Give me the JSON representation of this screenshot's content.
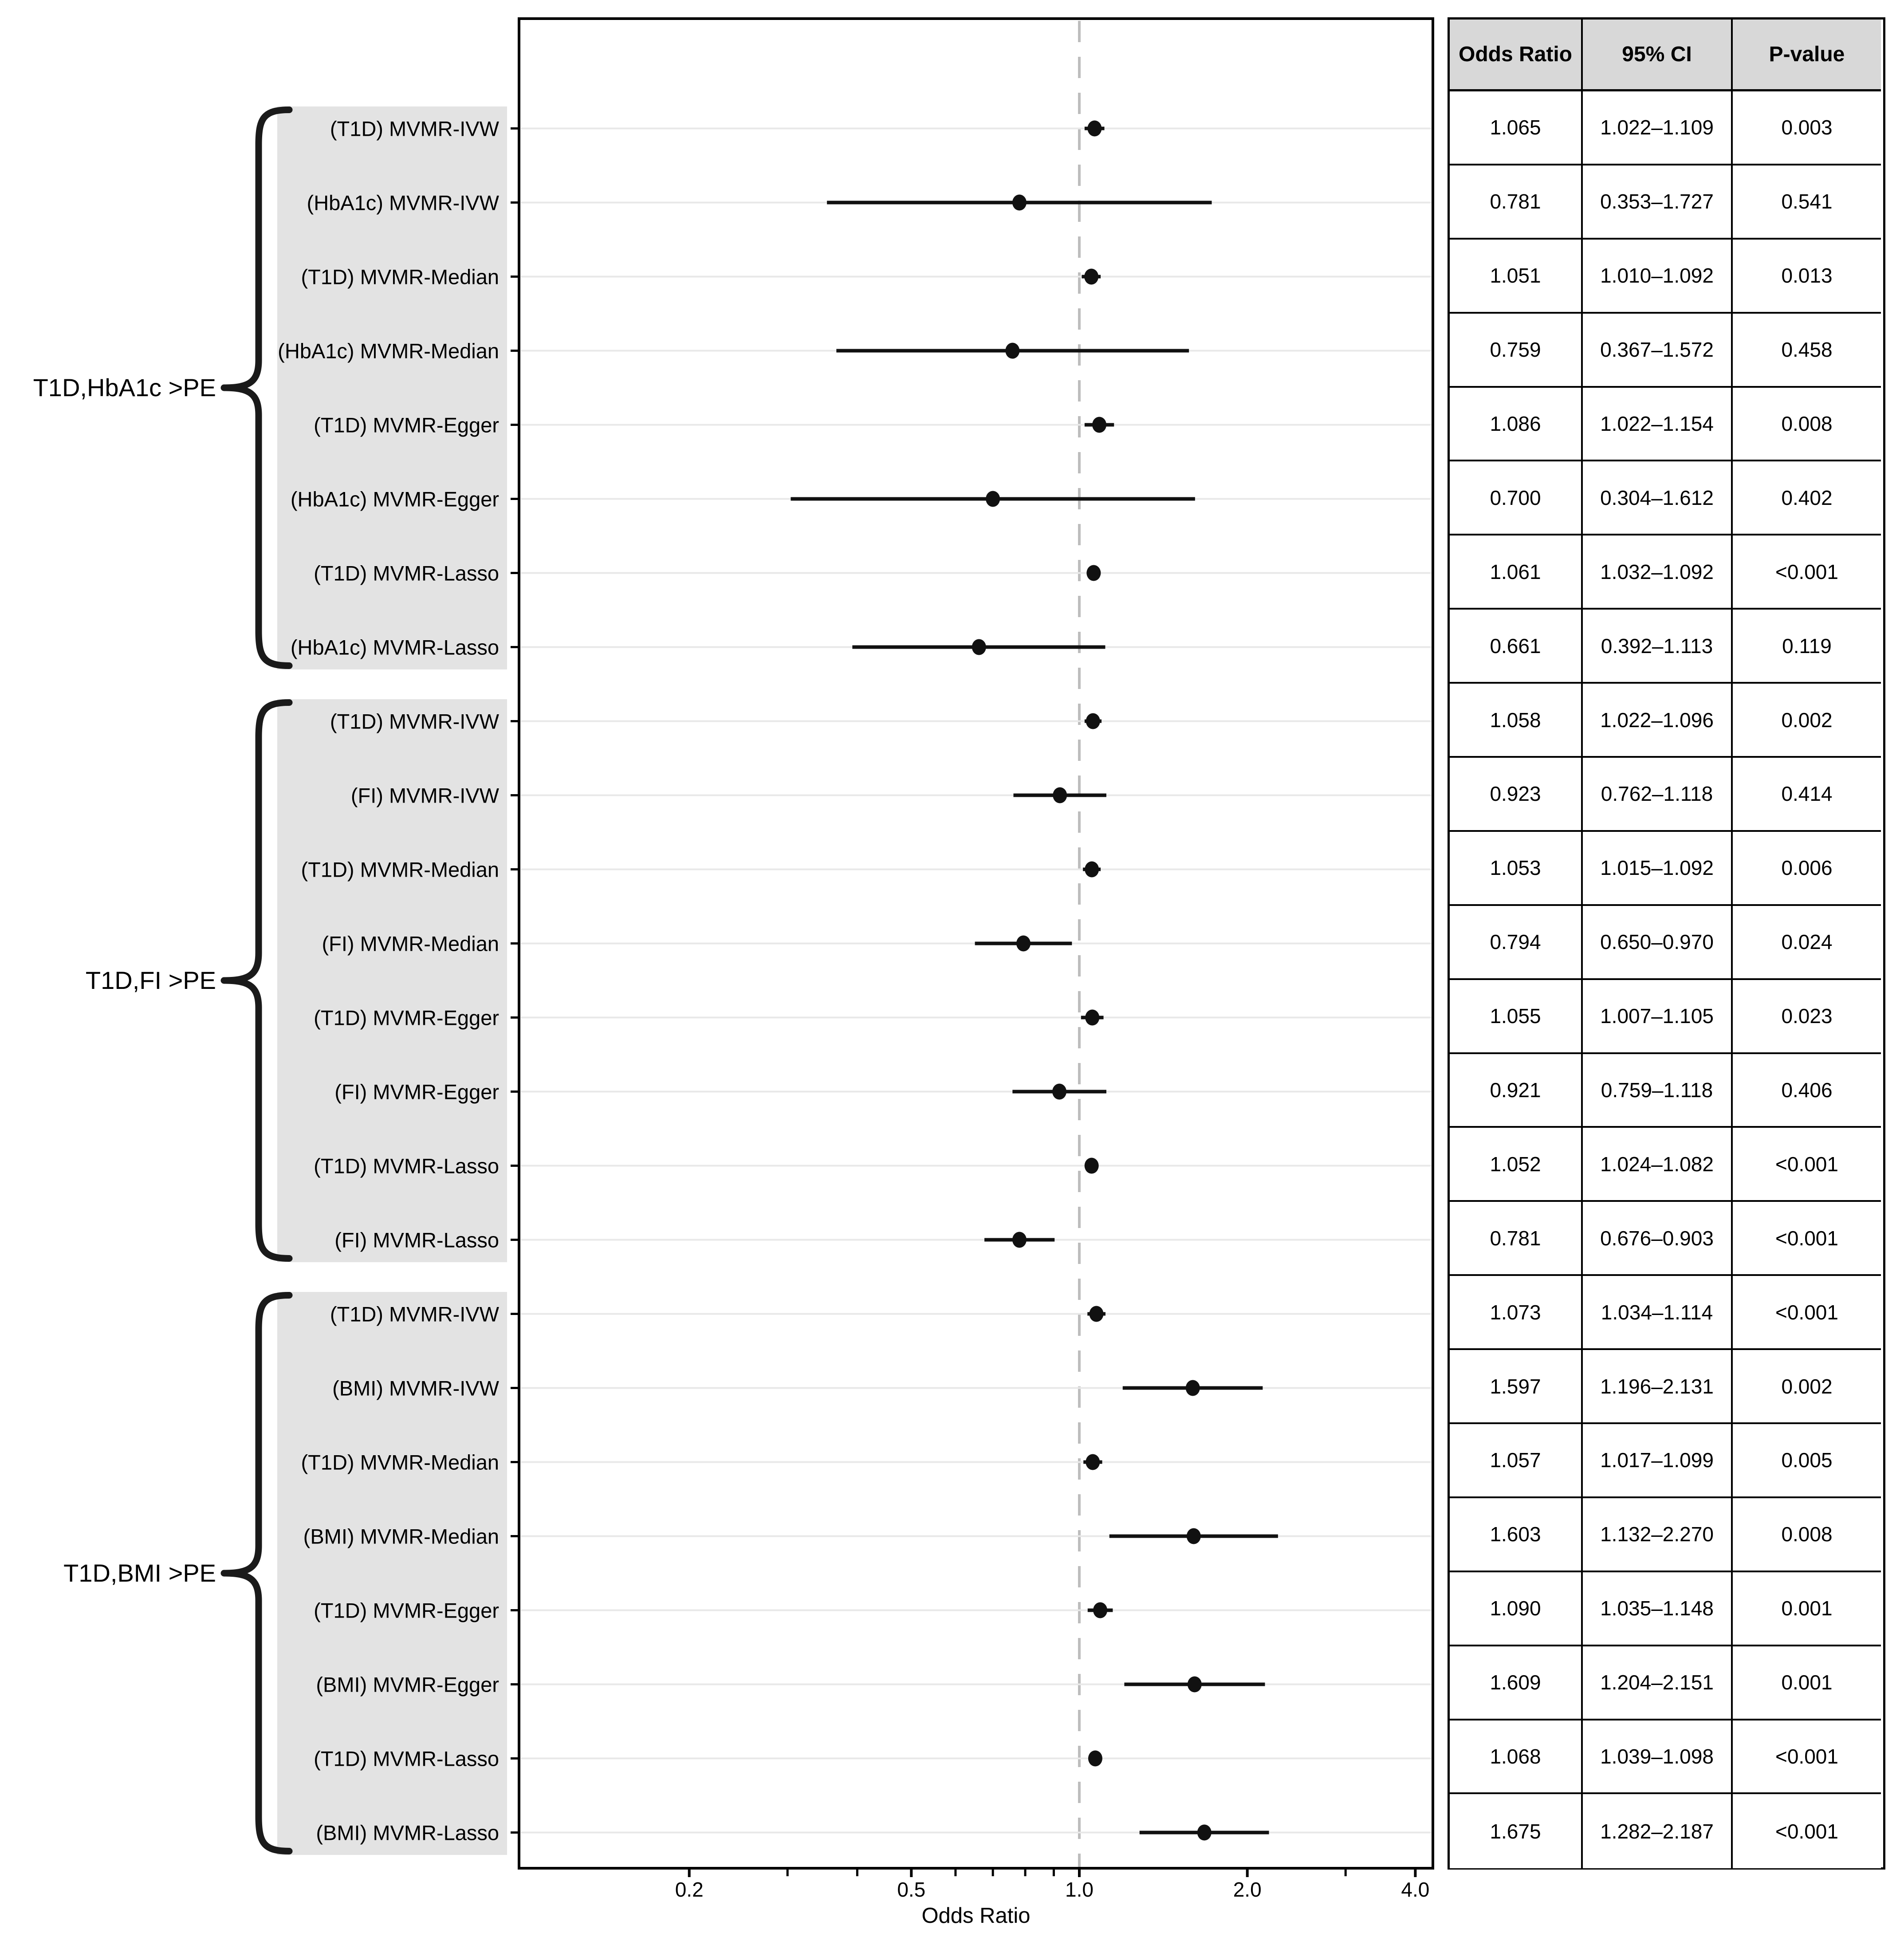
{
  "chart_data": {
    "type": "scatter",
    "variant": "forest-plot",
    "title": "",
    "xlabel": "Odds Ratio",
    "x_scale": "log10",
    "x_range": [
      0.098,
      4.3
    ],
    "x_major_tick_labels": [
      "0.2",
      "0.5",
      "1.0",
      "2.0",
      "4.0"
    ],
    "x_major_ticks": [
      0.2,
      0.5,
      1.0,
      2.0,
      4.0
    ],
    "x_minor_ticks": [
      0.3,
      0.4,
      0.6,
      0.7,
      0.8,
      0.9,
      3.0
    ],
    "reference_line": 1.0,
    "grid": "horizontal-per-row",
    "legend": "none",
    "table_columns": [
      "Odds Ratio",
      "95% CI",
      "P-value"
    ],
    "groups": [
      {
        "label": "T1D,HbA1c >PE",
        "rows": [
          {
            "label": "(T1D) MVMR-IVW",
            "or": 1.065,
            "or_text": "1.065",
            "ci_low": 1.022,
            "ci_high": 1.109,
            "ci": "1.022–1.109",
            "p": "0.003"
          },
          {
            "label": "(HbA1c) MVMR-IVW",
            "or": 0.781,
            "or_text": "0.781",
            "ci_low": 0.353,
            "ci_high": 1.727,
            "ci": "0.353–1.727",
            "p": "0.541"
          },
          {
            "label": "(T1D) MVMR-Median",
            "or": 1.051,
            "or_text": "1.051",
            "ci_low": 1.01,
            "ci_high": 1.092,
            "ci": "1.010–1.092",
            "p": "0.013"
          },
          {
            "label": "(HbA1c) MVMR-Median",
            "or": 0.759,
            "or_text": "0.759",
            "ci_low": 0.367,
            "ci_high": 1.572,
            "ci": "0.367–1.572",
            "p": "0.458"
          },
          {
            "label": "(T1D) MVMR-Egger",
            "or": 1.086,
            "or_text": "1.086",
            "ci_low": 1.022,
            "ci_high": 1.154,
            "ci": "1.022–1.154",
            "p": "0.008"
          },
          {
            "label": "(HbA1c) MVMR-Egger",
            "or": 0.7,
            "or_text": "0.700",
            "ci_low": 0.304,
            "ci_high": 1.612,
            "ci": "0.304–1.612",
            "p": "0.402"
          },
          {
            "label": "(T1D) MVMR-Lasso",
            "or": 1.061,
            "or_text": "1.061",
            "ci_low": 1.032,
            "ci_high": 1.092,
            "ci": "1.032–1.092",
            "p": "<0.001"
          },
          {
            "label": "(HbA1c) MVMR-Lasso",
            "or": 0.661,
            "or_text": "0.661",
            "ci_low": 0.392,
            "ci_high": 1.113,
            "ci": "0.392–1.113",
            "p": "0.119"
          }
        ]
      },
      {
        "label": "T1D,FI >PE",
        "rows": [
          {
            "label": "(T1D) MVMR-IVW",
            "or": 1.058,
            "or_text": "1.058",
            "ci_low": 1.022,
            "ci_high": 1.096,
            "ci": "1.022–1.096",
            "p": "0.002"
          },
          {
            "label": "(FI) MVMR-IVW",
            "or": 0.923,
            "or_text": "0.923",
            "ci_low": 0.762,
            "ci_high": 1.118,
            "ci": "0.762–1.118",
            "p": "0.414"
          },
          {
            "label": "(T1D) MVMR-Median",
            "or": 1.053,
            "or_text": "1.053",
            "ci_low": 1.015,
            "ci_high": 1.092,
            "ci": "1.015–1.092",
            "p": "0.006"
          },
          {
            "label": "(FI) MVMR-Median",
            "or": 0.794,
            "or_text": "0.794",
            "ci_low": 0.65,
            "ci_high": 0.97,
            "ci": "0.650–0.970",
            "p": "0.024"
          },
          {
            "label": "(T1D) MVMR-Egger",
            "or": 1.055,
            "or_text": "1.055",
            "ci_low": 1.007,
            "ci_high": 1.105,
            "ci": "1.007–1.105",
            "p": "0.023"
          },
          {
            "label": "(FI) MVMR-Egger",
            "or": 0.921,
            "or_text": "0.921",
            "ci_low": 0.759,
            "ci_high": 1.118,
            "ci": "0.759–1.118",
            "p": "0.406"
          },
          {
            "label": "(T1D) MVMR-Lasso",
            "or": 1.052,
            "or_text": "1.052",
            "ci_low": 1.024,
            "ci_high": 1.082,
            "ci": "1.024–1.082",
            "p": "<0.001"
          },
          {
            "label": "(FI) MVMR-Lasso",
            "or": 0.781,
            "or_text": "0.781",
            "ci_low": 0.676,
            "ci_high": 0.903,
            "ci": "0.676–0.903",
            "p": "<0.001"
          }
        ]
      },
      {
        "label": "T1D,BMI >PE",
        "rows": [
          {
            "label": "(T1D) MVMR-IVW",
            "or": 1.073,
            "or_text": "1.073",
            "ci_low": 1.034,
            "ci_high": 1.114,
            "ci": "1.034–1.114",
            "p": "<0.001"
          },
          {
            "label": "(BMI) MVMR-IVW",
            "or": 1.597,
            "or_text": "1.597",
            "ci_low": 1.196,
            "ci_high": 2.131,
            "ci": "1.196–2.131",
            "p": "0.002"
          },
          {
            "label": "(T1D) MVMR-Median",
            "or": 1.057,
            "or_text": "1.057",
            "ci_low": 1.017,
            "ci_high": 1.099,
            "ci": "1.017–1.099",
            "p": "0.005"
          },
          {
            "label": "(BMI) MVMR-Median",
            "or": 1.603,
            "or_text": "1.603",
            "ci_low": 1.132,
            "ci_high": 2.27,
            "ci": "1.132–2.270",
            "p": "0.008"
          },
          {
            "label": "(T1D) MVMR-Egger",
            "or": 1.09,
            "or_text": "1.090",
            "ci_low": 1.035,
            "ci_high": 1.148,
            "ci": "1.035–1.148",
            "p": "0.001"
          },
          {
            "label": "(BMI) MVMR-Egger",
            "or": 1.609,
            "or_text": "1.609",
            "ci_low": 1.204,
            "ci_high": 2.151,
            "ci": "1.204–2.151",
            "p": "0.001"
          },
          {
            "label": "(T1D) MVMR-Lasso",
            "or": 1.068,
            "or_text": "1.068",
            "ci_low": 1.039,
            "ci_high": 1.098,
            "ci": "1.039–1.098",
            "p": "<0.001"
          },
          {
            "label": "(BMI) MVMR-Lasso",
            "or": 1.675,
            "or_text": "1.675",
            "ci_low": 1.282,
            "ci_high": 2.187,
            "ci": "1.282–2.187",
            "p": "<0.001"
          }
        ]
      }
    ],
    "colors": {
      "marker": "#111111",
      "ci_line": "#111111",
      "grid_line": "#e8e8e8",
      "reference_dash": "#bdbdbd",
      "band_background": "#e3e3e3",
      "table_header_background": "#d8d8d8",
      "border": "#000000"
    }
  }
}
